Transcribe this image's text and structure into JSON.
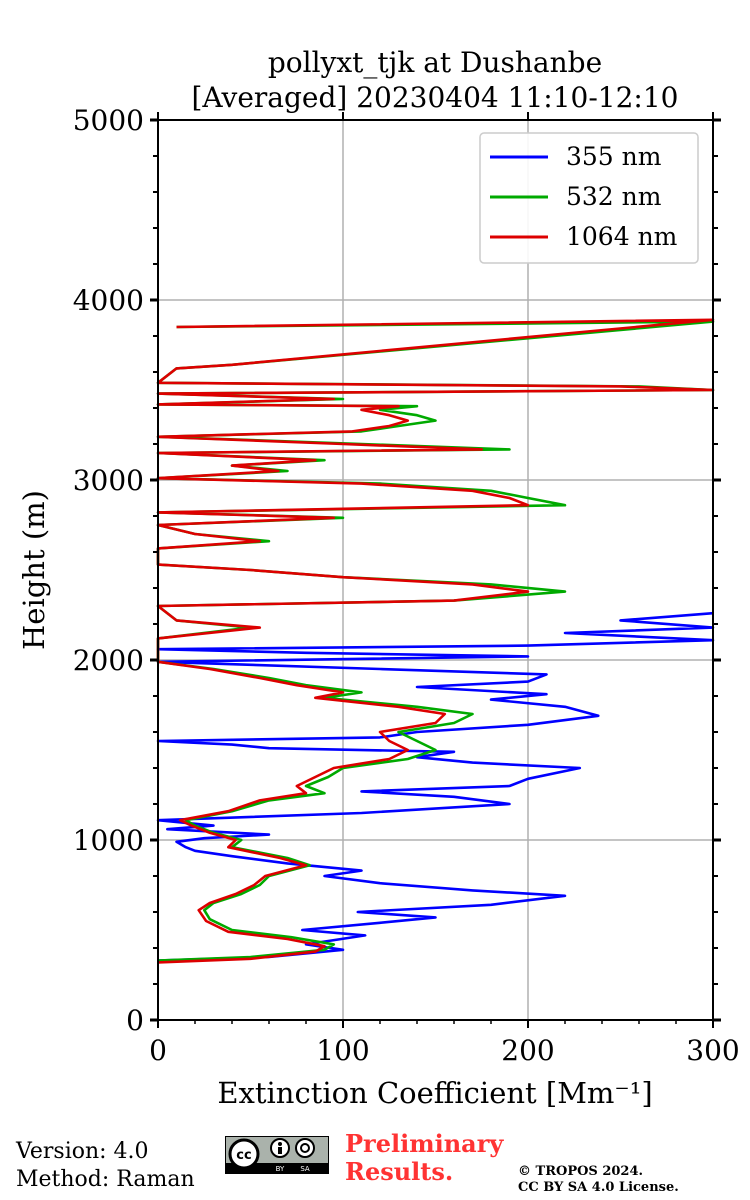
{
  "chart_data": {
    "type": "line",
    "title_line1": "pollyxt_tjk at Dushanbe",
    "title_line2": "[Averaged] 20230404 11:10-12:10",
    "xlabel": "Extinction Coefficient [Mm⁻¹]",
    "ylabel": "Height (m)",
    "xlim": [
      0,
      300
    ],
    "ylim": [
      0,
      5000
    ],
    "xticks": [
      0,
      100,
      200,
      300
    ],
    "yticks": [
      0,
      1000,
      2000,
      3000,
      4000,
      5000
    ],
    "grid": true,
    "legend_position": "top-right",
    "series": [
      {
        "name": "355 nm",
        "color": "#0000ff",
        "points": [
          [
            0,
            330
          ],
          [
            60,
            350
          ],
          [
            100,
            390
          ],
          [
            80,
            420
          ],
          [
            112,
            470
          ],
          [
            78,
            500
          ],
          [
            120,
            540
          ],
          [
            150,
            570
          ],
          [
            108,
            600
          ],
          [
            180,
            640
          ],
          [
            220,
            690
          ],
          [
            170,
            720
          ],
          [
            120,
            760
          ],
          [
            90,
            800
          ],
          [
            110,
            830
          ],
          [
            70,
            870
          ],
          [
            40,
            910
          ],
          [
            20,
            940
          ],
          [
            15,
            960
          ],
          [
            10,
            990
          ],
          [
            25,
            1010
          ],
          [
            60,
            1030
          ],
          [
            5,
            1060
          ],
          [
            30,
            1080
          ],
          [
            0,
            1110
          ],
          [
            110,
            1150
          ],
          [
            190,
            1200
          ],
          [
            160,
            1240
          ],
          [
            110,
            1270
          ],
          [
            190,
            1300
          ],
          [
            200,
            1340
          ],
          [
            228,
            1400
          ],
          [
            170,
            1430
          ],
          [
            140,
            1460
          ],
          [
            160,
            1490
          ],
          [
            60,
            1510
          ],
          [
            40,
            1530
          ],
          [
            0,
            1550
          ],
          [
            120,
            1570
          ],
          [
            140,
            1600
          ],
          [
            200,
            1640
          ],
          [
            238,
            1690
          ],
          [
            220,
            1740
          ],
          [
            180,
            1780
          ],
          [
            210,
            1810
          ],
          [
            140,
            1850
          ],
          [
            200,
            1880
          ],
          [
            210,
            1920
          ],
          [
            120,
            1950
          ],
          [
            0,
            1990
          ],
          [
            200,
            2020
          ],
          [
            80,
            2040
          ],
          [
            0,
            2060
          ],
          [
            200,
            2080
          ],
          [
            300,
            2110
          ],
          [
            220,
            2150
          ],
          [
            300,
            2180
          ],
          [
            250,
            2220
          ],
          [
            300,
            2260
          ]
        ]
      },
      {
        "name": "532 nm",
        "color": "#00aa00",
        "points": [
          [
            0,
            330
          ],
          [
            50,
            350
          ],
          [
            90,
            390
          ],
          [
            95,
            420
          ],
          [
            72,
            460
          ],
          [
            40,
            500
          ],
          [
            28,
            560
          ],
          [
            25,
            610
          ],
          [
            30,
            650
          ],
          [
            45,
            700
          ],
          [
            55,
            750
          ],
          [
            60,
            800
          ],
          [
            82,
            860
          ],
          [
            70,
            900
          ],
          [
            40,
            960
          ],
          [
            45,
            1000
          ],
          [
            30,
            1040
          ],
          [
            20,
            1080
          ],
          [
            15,
            1110
          ],
          [
            40,
            1160
          ],
          [
            60,
            1220
          ],
          [
            90,
            1260
          ],
          [
            80,
            1300
          ],
          [
            92,
            1350
          ],
          [
            100,
            1400
          ],
          [
            135,
            1450
          ],
          [
            150,
            1500
          ],
          [
            140,
            1550
          ],
          [
            130,
            1600
          ],
          [
            160,
            1650
          ],
          [
            170,
            1700
          ],
          [
            140,
            1740
          ],
          [
            90,
            1790
          ],
          [
            110,
            1820
          ],
          [
            80,
            1860
          ],
          [
            60,
            1900
          ],
          [
            30,
            1950
          ],
          [
            0,
            1990
          ],
          [
            0,
            2060
          ],
          [
            0,
            2120
          ],
          [
            50,
            2180
          ],
          [
            10,
            2220
          ],
          [
            0,
            2300
          ],
          [
            160,
            2330
          ],
          [
            220,
            2380
          ],
          [
            180,
            2420
          ],
          [
            100,
            2460
          ],
          [
            50,
            2500
          ],
          [
            0,
            2530
          ],
          [
            0,
            2620
          ],
          [
            60,
            2660
          ],
          [
            20,
            2700
          ],
          [
            0,
            2750
          ],
          [
            100,
            2790
          ],
          [
            0,
            2820
          ],
          [
            220,
            2860
          ],
          [
            200,
            2900
          ],
          [
            180,
            2940
          ],
          [
            120,
            2980
          ],
          [
            0,
            3010
          ],
          [
            70,
            3050
          ],
          [
            40,
            3080
          ],
          [
            90,
            3110
          ],
          [
            0,
            3150
          ],
          [
            190,
            3170
          ],
          [
            110,
            3200
          ],
          [
            0,
            3240
          ],
          [
            110,
            3270
          ],
          [
            130,
            3300
          ],
          [
            150,
            3330
          ],
          [
            140,
            3360
          ],
          [
            120,
            3390
          ],
          [
            140,
            3410
          ],
          [
            0,
            3420
          ],
          [
            100,
            3450
          ],
          [
            0,
            3480
          ],
          [
            300,
            3500
          ],
          [
            260,
            3520
          ],
          [
            0,
            3540
          ],
          [
            10,
            3620
          ],
          [
            40,
            3640
          ],
          [
            300,
            3880
          ],
          [
            10,
            3850
          ]
        ]
      },
      {
        "name": "1064 nm",
        "color": "#dd0000",
        "points": [
          [
            0,
            320
          ],
          [
            50,
            340
          ],
          [
            85,
            380
          ],
          [
            90,
            410
          ],
          [
            70,
            450
          ],
          [
            38,
            490
          ],
          [
            26,
            550
          ],
          [
            22,
            610
          ],
          [
            28,
            650
          ],
          [
            42,
            700
          ],
          [
            52,
            750
          ],
          [
            58,
            800
          ],
          [
            80,
            860
          ],
          [
            66,
            900
          ],
          [
            38,
            960
          ],
          [
            42,
            1000
          ],
          [
            28,
            1040
          ],
          [
            18,
            1080
          ],
          [
            12,
            1110
          ],
          [
            38,
            1160
          ],
          [
            55,
            1220
          ],
          [
            80,
            1260
          ],
          [
            75,
            1300
          ],
          [
            85,
            1350
          ],
          [
            95,
            1400
          ],
          [
            125,
            1450
          ],
          [
            135,
            1500
          ],
          [
            125,
            1550
          ],
          [
            120,
            1600
          ],
          [
            150,
            1650
          ],
          [
            155,
            1700
          ],
          [
            130,
            1740
          ],
          [
            85,
            1790
          ],
          [
            100,
            1820
          ],
          [
            75,
            1860
          ],
          [
            55,
            1900
          ],
          [
            28,
            1950
          ],
          [
            0,
            1990
          ],
          [
            0,
            2060
          ],
          [
            0,
            2120
          ],
          [
            55,
            2180
          ],
          [
            10,
            2220
          ],
          [
            0,
            2300
          ],
          [
            160,
            2330
          ],
          [
            200,
            2380
          ],
          [
            170,
            2420
          ],
          [
            100,
            2460
          ],
          [
            50,
            2500
          ],
          [
            0,
            2530
          ],
          [
            0,
            2620
          ],
          [
            55,
            2660
          ],
          [
            20,
            2700
          ],
          [
            0,
            2750
          ],
          [
            95,
            2790
          ],
          [
            0,
            2820
          ],
          [
            200,
            2860
          ],
          [
            190,
            2900
          ],
          [
            170,
            2940
          ],
          [
            110,
            2980
          ],
          [
            0,
            3010
          ],
          [
            65,
            3050
          ],
          [
            40,
            3080
          ],
          [
            85,
            3110
          ],
          [
            0,
            3150
          ],
          [
            175,
            3170
          ],
          [
            100,
            3200
          ],
          [
            0,
            3240
          ],
          [
            105,
            3270
          ],
          [
            125,
            3300
          ],
          [
            135,
            3330
          ],
          [
            125,
            3360
          ],
          [
            110,
            3390
          ],
          [
            130,
            3410
          ],
          [
            0,
            3420
          ],
          [
            95,
            3450
          ],
          [
            0,
            3480
          ],
          [
            300,
            3500
          ],
          [
            250,
            3520
          ],
          [
            0,
            3540
          ],
          [
            10,
            3620
          ],
          [
            40,
            3640
          ],
          [
            300,
            3890
          ],
          [
            10,
            3850
          ]
        ]
      }
    ]
  },
  "footer": {
    "version": "Version: 4.0",
    "method": "Method: Raman",
    "license_badge": "cc-by-sa-icon",
    "preliminary_line1": "Preliminary",
    "preliminary_line2": "Results.",
    "copyright_line1": "© TROPOS 2024.",
    "copyright_line2": "CC BY SA 4.0 License."
  }
}
